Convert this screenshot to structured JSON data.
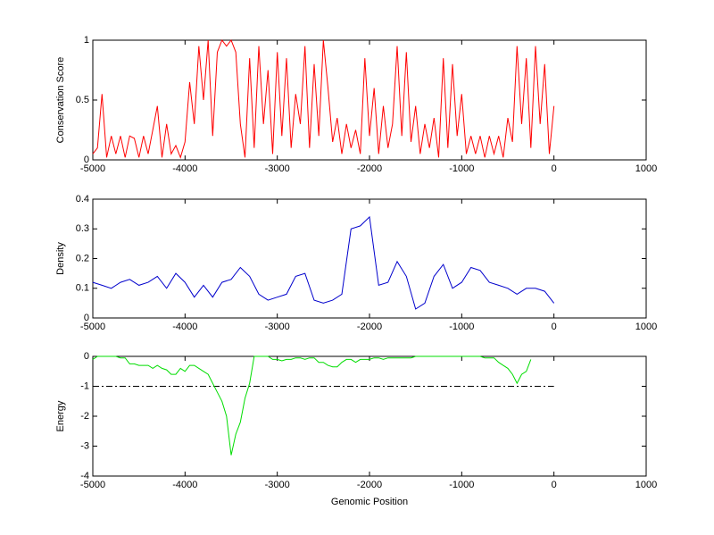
{
  "chart_data": [
    {
      "type": "line",
      "ylabel": "Conservation Score",
      "color": "#ff0000",
      "xlim": [
        -5000,
        1000
      ],
      "xticks": [
        -5000,
        -4000,
        -3000,
        -2000,
        -1000,
        0,
        1000
      ],
      "ylim": [
        0,
        1
      ],
      "yticks": [
        0,
        0.5,
        1
      ],
      "x": [
        -5000,
        -4950,
        -4900,
        -4850,
        -4800,
        -4750,
        -4700,
        -4650,
        -4600,
        -4550,
        -4500,
        -4450,
        -4400,
        -4350,
        -4300,
        -4250,
        -4200,
        -4150,
        -4100,
        -4050,
        -4000,
        -3950,
        -3900,
        -3850,
        -3800,
        -3750,
        -3700,
        -3650,
        -3600,
        -3550,
        -3500,
        -3450,
        -3400,
        -3350,
        -3300,
        -3250,
        -3200,
        -3150,
        -3100,
        -3050,
        -3000,
        -2950,
        -2900,
        -2850,
        -2800,
        -2750,
        -2700,
        -2650,
        -2600,
        -2550,
        -2500,
        -2450,
        -2400,
        -2350,
        -2300,
        -2250,
        -2200,
        -2150,
        -2100,
        -2050,
        -2000,
        -1950,
        -1900,
        -1850,
        -1800,
        -1750,
        -1700,
        -1650,
        -1600,
        -1550,
        -1500,
        -1450,
        -1400,
        -1350,
        -1300,
        -1250,
        -1200,
        -1150,
        -1100,
        -1050,
        -1000,
        -950,
        -900,
        -850,
        -800,
        -750,
        -700,
        -650,
        -600,
        -550,
        -500,
        -450,
        -400,
        -350,
        -300,
        -250,
        -200,
        -150,
        -100,
        -50,
        0
      ],
      "values": [
        0.05,
        0.1,
        0.55,
        0.02,
        0.2,
        0.05,
        0.2,
        0.02,
        0.2,
        0.18,
        0.02,
        0.2,
        0.05,
        0.25,
        0.45,
        0.02,
        0.3,
        0.05,
        0.12,
        0.02,
        0.15,
        0.65,
        0.3,
        0.95,
        0.5,
        1,
        0.2,
        0.9,
        1,
        0.95,
        1,
        0.9,
        0.3,
        0.02,
        0.85,
        0.1,
        0.95,
        0.3,
        0.75,
        0.05,
        0.9,
        0.2,
        0.85,
        0.1,
        0.55,
        0.3,
        0.95,
        0.1,
        0.8,
        0.2,
        1,
        0.6,
        0.15,
        0.35,
        0.05,
        0.3,
        0.1,
        0.25,
        0.05,
        0.85,
        0.2,
        0.6,
        0.05,
        0.45,
        0.1,
        0.3,
        0.95,
        0.2,
        0.9,
        0.15,
        0.45,
        0.05,
        0.3,
        0.1,
        0.35,
        0.02,
        0.85,
        0.1,
        0.8,
        0.2,
        0.55,
        0.05,
        0.2,
        0.05,
        0.2,
        0.02,
        0.2,
        0.05,
        0.2,
        0.02,
        0.35,
        0.15,
        0.95,
        0.3,
        0.85,
        0.1,
        0.95,
        0.3,
        0.8,
        0.05,
        0.45
      ]
    },
    {
      "type": "line",
      "ylabel": "Density",
      "color": "#0000cc",
      "xlim": [
        -5000,
        1000
      ],
      "xticks": [
        -5000,
        -4000,
        -3000,
        -2000,
        -1000,
        0,
        1000
      ],
      "ylim": [
        0,
        0.4
      ],
      "yticks": [
        0,
        0.1,
        0.2,
        0.3,
        0.4
      ],
      "x": [
        -5000,
        -4900,
        -4800,
        -4700,
        -4600,
        -4500,
        -4400,
        -4300,
        -4200,
        -4100,
        -4000,
        -3900,
        -3800,
        -3700,
        -3600,
        -3500,
        -3400,
        -3300,
        -3200,
        -3100,
        -3000,
        -2900,
        -2800,
        -2700,
        -2600,
        -2500,
        -2400,
        -2300,
        -2200,
        -2100,
        -2000,
        -1900,
        -1800,
        -1700,
        -1600,
        -1500,
        -1400,
        -1300,
        -1200,
        -1100,
        -1000,
        -900,
        -800,
        -700,
        -600,
        -500,
        -400,
        -300,
        -200,
        -100,
        0
      ],
      "values": [
        0.12,
        0.11,
        0.1,
        0.12,
        0.13,
        0.11,
        0.12,
        0.14,
        0.1,
        0.15,
        0.12,
        0.07,
        0.11,
        0.07,
        0.12,
        0.13,
        0.17,
        0.14,
        0.08,
        0.06,
        0.07,
        0.08,
        0.14,
        0.15,
        0.06,
        0.05,
        0.06,
        0.08,
        0.3,
        0.31,
        0.34,
        0.11,
        0.12,
        0.19,
        0.14,
        0.03,
        0.05,
        0.14,
        0.18,
        0.1,
        0.12,
        0.17,
        0.16,
        0.12,
        0.11,
        0.1,
        0.08,
        0.1,
        0.1,
        0.09,
        0.05
      ]
    },
    {
      "type": "line",
      "ylabel": "Energy",
      "xlabel": "Genomic Position",
      "color": "#00dd00",
      "xlim": [
        -5000,
        1000
      ],
      "xticks": [
        -5000,
        -4000,
        -3000,
        -2000,
        -1000,
        0,
        1000
      ],
      "ylim": [
        -4,
        0
      ],
      "yticks": [
        -4,
        -3,
        -2,
        -1,
        0
      ],
      "threshold": {
        "y": -1,
        "x": [
          -5000,
          0
        ],
        "color": "#000000"
      },
      "x": [
        -5000,
        -4950,
        -4900,
        -4850,
        -4800,
        -4750,
        -4700,
        -4650,
        -4600,
        -4550,
        -4500,
        -4450,
        -4400,
        -4350,
        -4300,
        -4250,
        -4200,
        -4150,
        -4100,
        -4050,
        -4000,
        -3950,
        -3900,
        -3850,
        -3800,
        -3750,
        -3700,
        -3650,
        -3600,
        -3550,
        -3500,
        -3450,
        -3400,
        -3350,
        -3300,
        -3250,
        -3200,
        -3150,
        -3100,
        -3050,
        -3000,
        -2950,
        -2900,
        -2850,
        -2800,
        -2750,
        -2700,
        -2650,
        -2600,
        -2550,
        -2500,
        -2450,
        -2400,
        -2350,
        -2300,
        -2250,
        -2200,
        -2150,
        -2100,
        -2050,
        -2000,
        -1950,
        -1900,
        -1850,
        -1800,
        -1750,
        -1700,
        -1650,
        -1600,
        -1550,
        -1500,
        -1450,
        -1400,
        -1350,
        -1300,
        -1250,
        -1200,
        -1150,
        -1100,
        -1050,
        -1000,
        -950,
        -900,
        -850,
        -800,
        -750,
        -700,
        -650,
        -600,
        -550,
        -500,
        -450,
        -400,
        -350,
        -300,
        -250
      ],
      "values": [
        -0.1,
        0,
        0,
        0,
        0,
        0,
        -0.05,
        -0.05,
        -0.25,
        -0.25,
        -0.3,
        -0.3,
        -0.3,
        -0.4,
        -0.3,
        -0.4,
        -0.45,
        -0.6,
        -0.6,
        -0.4,
        -0.5,
        -0.3,
        -0.3,
        -0.4,
        -0.5,
        -0.6,
        -0.9,
        -1.2,
        -1.5,
        -2,
        -3.3,
        -2.6,
        -2.2,
        -1.4,
        -0.9,
        0,
        0,
        0,
        0,
        -0.1,
        -0.1,
        -0.15,
        -0.1,
        -0.1,
        -0.05,
        -0.05,
        -0.1,
        -0.05,
        -0.05,
        -0.2,
        -0.2,
        -0.3,
        -0.35,
        -0.35,
        -0.2,
        -0.1,
        -0.1,
        -0.2,
        -0.1,
        -0.1,
        -0.1,
        -0.05,
        -0.05,
        -0.1,
        -0.05,
        -0.05,
        -0.05,
        -0.05,
        -0.05,
        -0.05,
        0,
        0,
        0,
        0,
        0,
        0,
        0,
        0,
        0,
        0,
        0,
        0,
        0,
        0,
        0,
        -0.05,
        -0.05,
        -0.05,
        -0.2,
        -0.3,
        -0.4,
        -0.6,
        -0.9,
        -0.6,
        -0.5,
        -0.1
      ]
    }
  ]
}
